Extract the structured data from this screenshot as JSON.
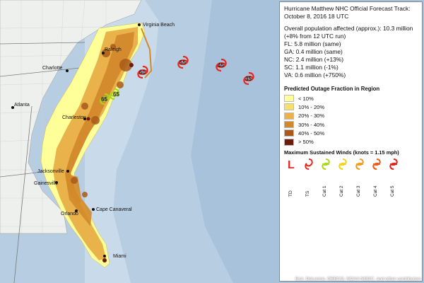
{
  "title": "Hurricane Matthew NHC Official Forecast Track: October 8, 2016 18 UTC",
  "population": {
    "overall": "Overall population affected (approx.): 10.3 million (+8% from 12 UTC run)",
    "states": [
      "FL: 5.8 million (same)",
      "GA: 0.4 million (same)",
      "NC: 2.4 million (+13%)",
      "SC: 1.1 million (-1%)",
      "VA: 0.6 million (+750%)"
    ]
  },
  "outage_legend": {
    "title": "Predicted Outage Fraction in Region",
    "items": [
      {
        "label": "< 10%",
        "color": "#ffff99"
      },
      {
        "label": "10% - 20%",
        "color": "#f7e06a"
      },
      {
        "label": "20% - 30%",
        "color": "#e9b24a"
      },
      {
        "label": "30% - 40%",
        "color": "#d3892b"
      },
      {
        "label": "40% - 50%",
        "color": "#a95a1a"
      },
      {
        "label": "> 50%",
        "color": "#6e1a0c"
      }
    ]
  },
  "winds_legend": {
    "title": "Maximum Sustained Winds (knots = 1.15 mph)",
    "items": [
      {
        "label": "TD",
        "color": "#e8261d",
        "icon": "low-pressure-icon"
      },
      {
        "label": "TS",
        "color": "#e8261d",
        "icon": "storm-icon"
      },
      {
        "label": "Cat 1",
        "color": "#a8d818",
        "icon": "hurricane-icon"
      },
      {
        "label": "Cat 2",
        "color": "#f2d21a",
        "icon": "hurricane-icon"
      },
      {
        "label": "Cat 3",
        "color": "#f39a1a",
        "icon": "hurricane-icon"
      },
      {
        "label": "Cat 4",
        "color": "#ee5a14",
        "icon": "hurricane-icon"
      },
      {
        "label": "Cat 5",
        "color": "#e0201a",
        "icon": "hurricane-icon"
      }
    ]
  },
  "cities": [
    "Virginia Beach",
    "Raleigh",
    "Charlotte",
    "Atlanta",
    "Charleston",
    "Jacksonville",
    "Gainesville",
    "Orlando",
    "Cape Canaveral",
    "Miami"
  ],
  "storm_points": [
    "65",
    "65",
    "60",
    "55",
    "45",
    "35"
  ],
  "attribution": "Esri, DeLorme, GEBCO, NOAA NGDC, and other contributors"
}
